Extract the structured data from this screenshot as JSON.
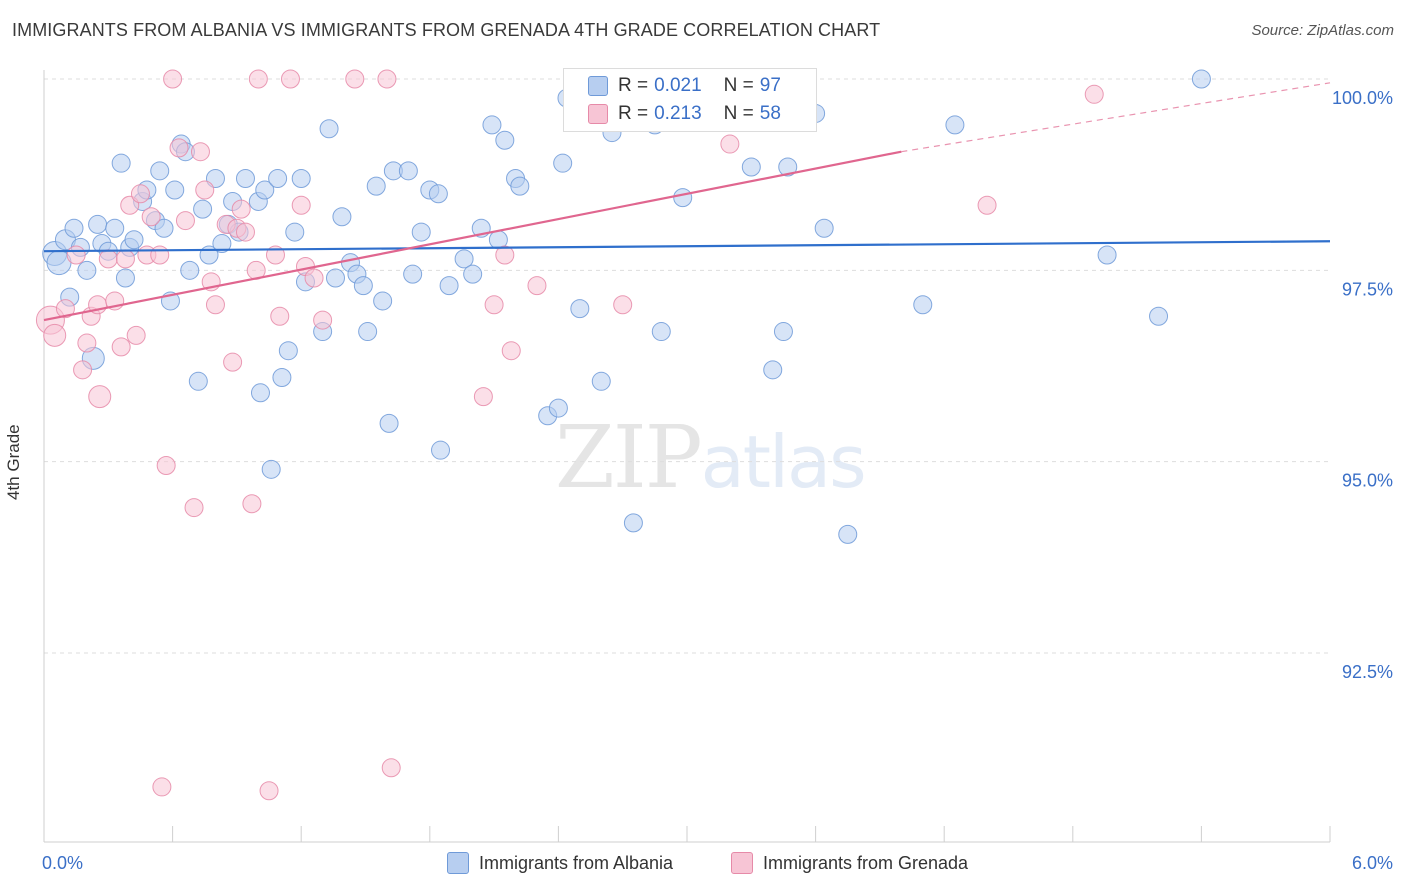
{
  "header": {
    "title": "IMMIGRANTS FROM ALBANIA VS IMMIGRANTS FROM GRENADA 4TH GRADE CORRELATION CHART",
    "source": "Source: ZipAtlas.com"
  },
  "watermark": {
    "zip": "ZIP",
    "atlas": "atlas"
  },
  "legend": {
    "albania": {
      "r_label": "R =",
      "r_value": "0.021",
      "n_label": "N =",
      "n_value": "97"
    },
    "grenada": {
      "r_label": "R =",
      "r_value": "0.213",
      "n_label": "N =",
      "n_value": "58"
    }
  },
  "colors": {
    "albania_fill": "#b7cef0",
    "albania_stroke": "#6f9ad8",
    "albania_line": "#2f6fcc",
    "grenada_fill": "#f7c5d5",
    "grenada_stroke": "#e68aa8",
    "grenada_line": "#e0668f",
    "tick_text": "#3a6fc7",
    "grid": "#dddddd"
  },
  "chart_data": {
    "type": "scatter",
    "title": "IMMIGRANTS FROM ALBANIA VS IMMIGRANTS FROM GRENADA 4TH GRADE CORRELATION CHART",
    "xlabel": "",
    "ylabel": "4th Grade",
    "xlim": [
      0,
      6
    ],
    "ylim": [
      90.2,
      100.5
    ],
    "x_tick_labels": [
      "0.0%",
      "6.0%"
    ],
    "y_ticks": [
      {
        "value": 100.0,
        "label": "100.0%"
      },
      {
        "value": 97.5,
        "label": "97.5%"
      },
      {
        "value": 95.0,
        "label": "95.0%"
      },
      {
        "value": 92.5,
        "label": "92.5%"
      }
    ],
    "legend_position": "bottom-center",
    "series": [
      {
        "name": "Immigrants from Albania",
        "color": "#b7cef0",
        "trend": {
          "x": [
            0.0,
            6.0
          ],
          "y": [
            97.75,
            97.88
          ]
        },
        "points": [
          {
            "x": 0.05,
            "y": 97.72,
            "s": 12
          },
          {
            "x": 0.07,
            "y": 97.6,
            "s": 12
          },
          {
            "x": 0.1,
            "y": 97.9,
            "s": 10
          },
          {
            "x": 0.12,
            "y": 97.15,
            "s": 9
          },
          {
            "x": 0.14,
            "y": 98.05,
            "s": 9
          },
          {
            "x": 0.17,
            "y": 97.8,
            "s": 9
          },
          {
            "x": 0.2,
            "y": 97.5,
            "s": 9
          },
          {
            "x": 0.25,
            "y": 98.1,
            "s": 9
          },
          {
            "x": 0.23,
            "y": 96.35,
            "s": 11
          },
          {
            "x": 0.27,
            "y": 97.85,
            "s": 9
          },
          {
            "x": 0.3,
            "y": 97.75,
            "s": 9
          },
          {
            "x": 0.33,
            "y": 98.05,
            "s": 9
          },
          {
            "x": 0.36,
            "y": 98.9,
            "s": 9
          },
          {
            "x": 0.38,
            "y": 97.4,
            "s": 9
          },
          {
            "x": 0.4,
            "y": 97.8,
            "s": 9
          },
          {
            "x": 0.42,
            "y": 97.9,
            "s": 9
          },
          {
            "x": 0.46,
            "y": 98.4,
            "s": 9
          },
          {
            "x": 0.48,
            "y": 98.55,
            "s": 9
          },
          {
            "x": 0.52,
            "y": 98.15,
            "s": 9
          },
          {
            "x": 0.54,
            "y": 98.8,
            "s": 9
          },
          {
            "x": 0.56,
            "y": 98.05,
            "s": 9
          },
          {
            "x": 0.59,
            "y": 97.1,
            "s": 9
          },
          {
            "x": 0.61,
            "y": 98.55,
            "s": 9
          },
          {
            "x": 0.64,
            "y": 99.15,
            "s": 9
          },
          {
            "x": 0.66,
            "y": 99.05,
            "s": 9
          },
          {
            "x": 0.68,
            "y": 97.5,
            "s": 9
          },
          {
            "x": 0.72,
            "y": 96.05,
            "s": 9
          },
          {
            "x": 0.74,
            "y": 98.3,
            "s": 9
          },
          {
            "x": 0.77,
            "y": 97.7,
            "s": 9
          },
          {
            "x": 0.8,
            "y": 98.7,
            "s": 9
          },
          {
            "x": 0.83,
            "y": 97.85,
            "s": 9
          },
          {
            "x": 0.86,
            "y": 98.1,
            "s": 9
          },
          {
            "x": 0.88,
            "y": 98.4,
            "s": 9
          },
          {
            "x": 0.91,
            "y": 98.0,
            "s": 9
          },
          {
            "x": 0.94,
            "y": 98.7,
            "s": 9
          },
          {
            "x": 1.0,
            "y": 98.4,
            "s": 9
          },
          {
            "x": 1.01,
            "y": 95.9,
            "s": 9
          },
          {
            "x": 1.03,
            "y": 98.55,
            "s": 9
          },
          {
            "x": 1.06,
            "y": 94.9,
            "s": 9
          },
          {
            "x": 1.09,
            "y": 98.7,
            "s": 9
          },
          {
            "x": 1.11,
            "y": 96.1,
            "s": 9
          },
          {
            "x": 1.14,
            "y": 96.45,
            "s": 9
          },
          {
            "x": 1.17,
            "y": 98.0,
            "s": 9
          },
          {
            "x": 1.2,
            "y": 98.7,
            "s": 9
          },
          {
            "x": 1.22,
            "y": 97.35,
            "s": 9
          },
          {
            "x": 1.3,
            "y": 96.7,
            "s": 9
          },
          {
            "x": 1.33,
            "y": 99.35,
            "s": 9
          },
          {
            "x": 1.36,
            "y": 97.4,
            "s": 9
          },
          {
            "x": 1.39,
            "y": 98.2,
            "s": 9
          },
          {
            "x": 1.43,
            "y": 97.6,
            "s": 9
          },
          {
            "x": 1.46,
            "y": 97.45,
            "s": 9
          },
          {
            "x": 1.49,
            "y": 97.3,
            "s": 9
          },
          {
            "x": 1.51,
            "y": 96.7,
            "s": 9
          },
          {
            "x": 1.55,
            "y": 98.6,
            "s": 9
          },
          {
            "x": 1.58,
            "y": 97.1,
            "s": 9
          },
          {
            "x": 1.61,
            "y": 95.5,
            "s": 9
          },
          {
            "x": 1.63,
            "y": 98.8,
            "s": 9
          },
          {
            "x": 1.7,
            "y": 98.8,
            "s": 9
          },
          {
            "x": 1.72,
            "y": 97.45,
            "s": 9
          },
          {
            "x": 1.76,
            "y": 98.0,
            "s": 9
          },
          {
            "x": 1.8,
            "y": 98.55,
            "s": 9
          },
          {
            "x": 1.84,
            "y": 98.5,
            "s": 9
          },
          {
            "x": 1.85,
            "y": 95.15,
            "s": 9
          },
          {
            "x": 1.89,
            "y": 97.3,
            "s": 9
          },
          {
            "x": 1.96,
            "y": 97.65,
            "s": 9
          },
          {
            "x": 2.0,
            "y": 97.45,
            "s": 9
          },
          {
            "x": 2.04,
            "y": 98.05,
            "s": 9
          },
          {
            "x": 2.09,
            "y": 99.4,
            "s": 9
          },
          {
            "x": 2.12,
            "y": 97.9,
            "s": 9
          },
          {
            "x": 2.15,
            "y": 99.2,
            "s": 9
          },
          {
            "x": 2.2,
            "y": 98.7,
            "s": 9
          },
          {
            "x": 2.22,
            "y": 98.6,
            "s": 9
          },
          {
            "x": 2.35,
            "y": 95.6,
            "s": 9
          },
          {
            "x": 2.4,
            "y": 95.7,
            "s": 9
          },
          {
            "x": 2.42,
            "y": 98.9,
            "s": 9
          },
          {
            "x": 2.44,
            "y": 99.75,
            "s": 9
          },
          {
            "x": 2.5,
            "y": 97.0,
            "s": 9
          },
          {
            "x": 2.6,
            "y": 96.05,
            "s": 9
          },
          {
            "x": 2.65,
            "y": 99.3,
            "s": 9
          },
          {
            "x": 2.75,
            "y": 94.2,
            "s": 9
          },
          {
            "x": 2.85,
            "y": 99.4,
            "s": 9
          },
          {
            "x": 2.88,
            "y": 96.7,
            "s": 9
          },
          {
            "x": 2.98,
            "y": 98.45,
            "s": 9
          },
          {
            "x": 3.05,
            "y": 100.0,
            "s": 9
          },
          {
            "x": 3.08,
            "y": 99.9,
            "s": 9
          },
          {
            "x": 3.3,
            "y": 98.85,
            "s": 9
          },
          {
            "x": 3.4,
            "y": 96.2,
            "s": 9
          },
          {
            "x": 3.45,
            "y": 96.7,
            "s": 9
          },
          {
            "x": 3.47,
            "y": 98.85,
            "s": 9
          },
          {
            "x": 3.6,
            "y": 99.55,
            "s": 9
          },
          {
            "x": 3.64,
            "y": 98.05,
            "s": 9
          },
          {
            "x": 3.75,
            "y": 94.05,
            "s": 9
          },
          {
            "x": 4.1,
            "y": 97.05,
            "s": 9
          },
          {
            "x": 4.25,
            "y": 99.4,
            "s": 9
          },
          {
            "x": 4.96,
            "y": 97.7,
            "s": 9
          },
          {
            "x": 5.2,
            "y": 96.9,
            "s": 9
          },
          {
            "x": 5.4,
            "y": 100.0,
            "s": 9
          }
        ]
      },
      {
        "name": "Immigrants from Grenada",
        "color": "#f7c5d5",
        "trend": {
          "x": [
            0.0,
            4.0
          ],
          "y": [
            96.85,
            99.05
          ]
        },
        "trend_dashed": {
          "x": [
            4.0,
            6.0
          ],
          "y": [
            99.05,
            99.95
          ]
        },
        "points": [
          {
            "x": 0.03,
            "y": 96.85,
            "s": 14
          },
          {
            "x": 0.05,
            "y": 96.65,
            "s": 11
          },
          {
            "x": 0.1,
            "y": 97.0,
            "s": 9
          },
          {
            "x": 0.15,
            "y": 97.7,
            "s": 9
          },
          {
            "x": 0.18,
            "y": 96.2,
            "s": 9
          },
          {
            "x": 0.2,
            "y": 96.55,
            "s": 9
          },
          {
            "x": 0.22,
            "y": 96.9,
            "s": 9
          },
          {
            "x": 0.25,
            "y": 97.05,
            "s": 9
          },
          {
            "x": 0.26,
            "y": 95.85,
            "s": 11
          },
          {
            "x": 0.3,
            "y": 97.65,
            "s": 9
          },
          {
            "x": 0.33,
            "y": 97.1,
            "s": 9
          },
          {
            "x": 0.36,
            "y": 96.5,
            "s": 9
          },
          {
            "x": 0.38,
            "y": 97.65,
            "s": 9
          },
          {
            "x": 0.4,
            "y": 98.35,
            "s": 9
          },
          {
            "x": 0.43,
            "y": 96.65,
            "s": 9
          },
          {
            "x": 0.45,
            "y": 98.5,
            "s": 9
          },
          {
            "x": 0.48,
            "y": 97.7,
            "s": 9
          },
          {
            "x": 0.5,
            "y": 98.2,
            "s": 9
          },
          {
            "x": 0.54,
            "y": 97.7,
            "s": 9
          },
          {
            "x": 0.55,
            "y": 90.75,
            "s": 9
          },
          {
            "x": 0.57,
            "y": 94.95,
            "s": 9
          },
          {
            "x": 0.6,
            "y": 100.0,
            "s": 9
          },
          {
            "x": 0.63,
            "y": 99.1,
            "s": 9
          },
          {
            "x": 0.66,
            "y": 98.15,
            "s": 9
          },
          {
            "x": 0.7,
            "y": 94.4,
            "s": 9
          },
          {
            "x": 0.73,
            "y": 99.05,
            "s": 9
          },
          {
            "x": 0.75,
            "y": 98.55,
            "s": 9
          },
          {
            "x": 0.78,
            "y": 97.35,
            "s": 9
          },
          {
            "x": 0.8,
            "y": 97.05,
            "s": 9
          },
          {
            "x": 0.85,
            "y": 98.1,
            "s": 9
          },
          {
            "x": 0.88,
            "y": 96.3,
            "s": 9
          },
          {
            "x": 0.9,
            "y": 98.05,
            "s": 9
          },
          {
            "x": 0.92,
            "y": 98.3,
            "s": 9
          },
          {
            "x": 0.94,
            "y": 98.0,
            "s": 9
          },
          {
            "x": 0.97,
            "y": 94.45,
            "s": 9
          },
          {
            "x": 0.99,
            "y": 97.5,
            "s": 9
          },
          {
            "x": 1.0,
            "y": 100.0,
            "s": 9
          },
          {
            "x": 1.05,
            "y": 90.7,
            "s": 9
          },
          {
            "x": 1.08,
            "y": 97.7,
            "s": 9
          },
          {
            "x": 1.1,
            "y": 96.9,
            "s": 9
          },
          {
            "x": 1.15,
            "y": 100.0,
            "s": 9
          },
          {
            "x": 1.2,
            "y": 98.35,
            "s": 9
          },
          {
            "x": 1.22,
            "y": 97.55,
            "s": 9
          },
          {
            "x": 1.26,
            "y": 97.4,
            "s": 9
          },
          {
            "x": 1.3,
            "y": 96.85,
            "s": 9
          },
          {
            "x": 1.45,
            "y": 100.0,
            "s": 9
          },
          {
            "x": 1.6,
            "y": 100.0,
            "s": 9
          },
          {
            "x": 1.62,
            "y": 91.0,
            "s": 9
          },
          {
            "x": 2.05,
            "y": 95.85,
            "s": 9
          },
          {
            "x": 2.1,
            "y": 97.05,
            "s": 9
          },
          {
            "x": 2.15,
            "y": 97.7,
            "s": 9
          },
          {
            "x": 2.18,
            "y": 96.45,
            "s": 9
          },
          {
            "x": 2.3,
            "y": 97.3,
            "s": 9
          },
          {
            "x": 2.7,
            "y": 97.05,
            "s": 9
          },
          {
            "x": 3.0,
            "y": 99.95,
            "s": 9
          },
          {
            "x": 3.2,
            "y": 99.15,
            "s": 9
          },
          {
            "x": 4.4,
            "y": 98.35,
            "s": 9
          },
          {
            "x": 4.9,
            "y": 99.8,
            "s": 9
          }
        ]
      }
    ]
  }
}
